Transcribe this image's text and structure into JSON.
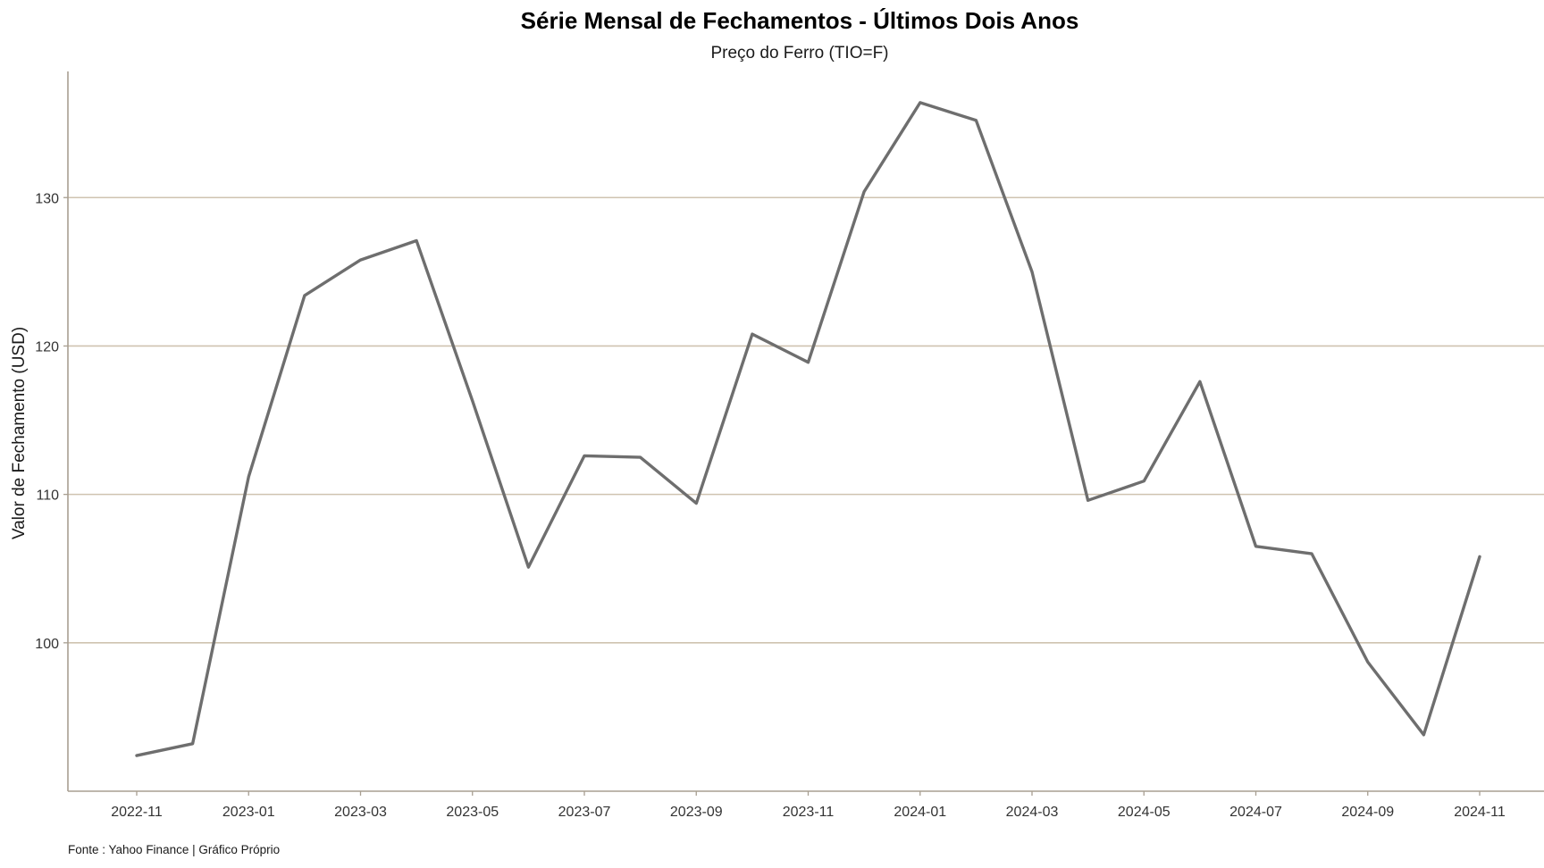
{
  "chart_data": {
    "type": "line",
    "title": "Série Mensal de Fechamentos - Últimos Dois Anos",
    "subtitle": "Preço do Ferro (TIO=F)",
    "xlabel": "",
    "ylabel": "Valor de Fechamento (USD)",
    "caption": "Fonte : Yahoo Finance | Gráfico Próprio",
    "x": [
      "2022-11",
      "2022-12",
      "2023-01",
      "2023-02",
      "2023-03",
      "2023-04",
      "2023-05",
      "2023-06",
      "2023-07",
      "2023-08",
      "2023-09",
      "2023-10",
      "2023-11",
      "2023-12",
      "2024-01",
      "2024-02",
      "2024-03",
      "2024-04",
      "2024-05",
      "2024-06",
      "2024-07",
      "2024-08",
      "2024-09",
      "2024-10",
      "2024-11"
    ],
    "series": [
      {
        "values": [
          92.4,
          93.2,
          111.2,
          123.4,
          125.8,
          127.1,
          116.3,
          105.1,
          112.6,
          112.5,
          109.4,
          120.8,
          118.9,
          130.4,
          136.4,
          135.2,
          125.0,
          109.6,
          110.9,
          117.6,
          106.5,
          106.0,
          98.7,
          93.8,
          105.8
        ],
        "color": "#6e6e6e"
      }
    ],
    "x_tick_labels": [
      "2022-11",
      "2023-01",
      "2023-03",
      "2023-05",
      "2023-07",
      "2023-09",
      "2023-11",
      "2024-01",
      "2024-03",
      "2024-05",
      "2024-07",
      "2024-09",
      "2024-11"
    ],
    "y_ticks": [
      100,
      110,
      120,
      130
    ],
    "ylim": [
      90.0,
      138.5
    ],
    "grid": "horizontal",
    "colors": {
      "line": "#6e6e6e",
      "grid": "#cfc3b0",
      "axis": "#a89f92"
    }
  }
}
